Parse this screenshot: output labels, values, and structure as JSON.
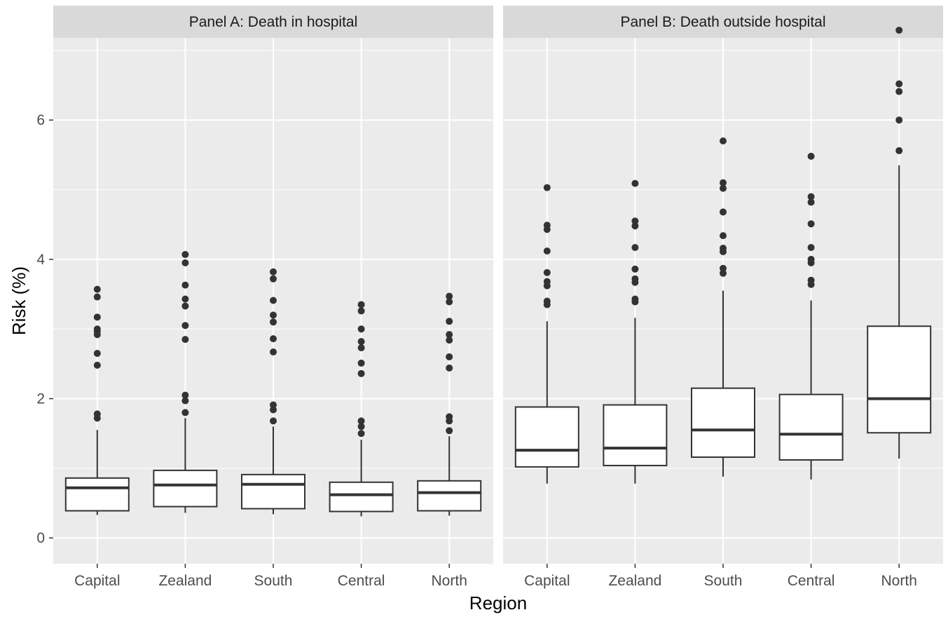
{
  "chart_data": {
    "type": "boxplot",
    "xlabel": "Region",
    "ylabel": "Risk (%)",
    "ylim": [
      -0.37,
      7.18
    ],
    "y_ticks": [
      0,
      2,
      4,
      6
    ],
    "y_tick_labels": [
      "0",
      "2",
      "4",
      "6"
    ],
    "categories": [
      "Capital",
      "Zealand",
      "South",
      "Central",
      "North"
    ],
    "grid": true,
    "panels": [
      {
        "title": "Panel A: Death in hospital",
        "boxes": [
          {
            "category": "Capital",
            "whisker_low": 0.33,
            "q1": 0.39,
            "median": 0.72,
            "q3": 0.86,
            "whisker_high": 1.55,
            "outliers": [
              1.72,
              1.78,
              2.48,
              2.65,
              2.92,
              2.97,
              3.0,
              3.17,
              3.46,
              3.57
            ]
          },
          {
            "category": "Zealand",
            "whisker_low": 0.36,
            "q1": 0.45,
            "median": 0.76,
            "q3": 0.97,
            "whisker_high": 1.72,
            "outliers": [
              1.8,
              1.97,
              2.05,
              2.85,
              3.05,
              3.33,
              3.43,
              3.63,
              3.95,
              4.07
            ]
          },
          {
            "category": "South",
            "whisker_low": 0.34,
            "q1": 0.42,
            "median": 0.77,
            "q3": 0.91,
            "whisker_high": 1.6,
            "outliers": [
              1.68,
              1.84,
              1.91,
              2.67,
              2.86,
              3.1,
              3.2,
              3.41,
              3.72,
              3.82
            ]
          },
          {
            "category": "Central",
            "whisker_low": 0.31,
            "q1": 0.38,
            "median": 0.62,
            "q3": 0.8,
            "whisker_high": 1.41,
            "outliers": [
              1.5,
              1.6,
              1.68,
              2.36,
              2.51,
              2.73,
              2.82,
              3.0,
              3.26,
              3.35
            ]
          },
          {
            "category": "North",
            "whisker_low": 0.32,
            "q1": 0.39,
            "median": 0.65,
            "q3": 0.82,
            "whisker_high": 1.46,
            "outliers": [
              1.54,
              1.68,
              1.74,
              2.44,
              2.6,
              2.84,
              2.92,
              3.11,
              3.39,
              3.47
            ]
          }
        ]
      },
      {
        "title": "Panel B: Death outside hospital",
        "boxes": [
          {
            "category": "Capital",
            "whisker_low": 0.78,
            "q1": 1.02,
            "median": 1.26,
            "q3": 1.88,
            "whisker_high": 3.11,
            "outliers": [
              3.35,
              3.4,
              3.62,
              3.68,
              3.81,
              4.12,
              4.43,
              4.49,
              5.03
            ]
          },
          {
            "category": "Zealand",
            "whisker_low": 0.78,
            "q1": 1.04,
            "median": 1.29,
            "q3": 1.91,
            "whisker_high": 3.16,
            "outliers": [
              3.39,
              3.43,
              3.67,
              3.72,
              3.86,
              4.17,
              4.48,
              4.55,
              5.09
            ]
          },
          {
            "category": "South",
            "whisker_low": 0.88,
            "q1": 1.16,
            "median": 1.55,
            "q3": 2.15,
            "whisker_high": 3.55,
            "outliers": [
              3.8,
              3.87,
              4.11,
              4.16,
              4.34,
              4.68,
              5.02,
              5.1,
              5.7
            ]
          },
          {
            "category": "Central",
            "whisker_low": 0.84,
            "q1": 1.12,
            "median": 1.49,
            "q3": 2.06,
            "whisker_high": 3.41,
            "outliers": [
              3.64,
              3.7,
              3.95,
              4.0,
              4.17,
              4.51,
              4.82,
              4.9,
              5.48
            ]
          },
          {
            "category": "North",
            "whisker_low": 1.14,
            "q1": 1.51,
            "median": 2.0,
            "q3": 3.04,
            "whisker_high": 5.35,
            "outliers": [
              5.56,
              6.0,
              6.41,
              6.52,
              7.29
            ]
          }
        ]
      }
    ]
  }
}
